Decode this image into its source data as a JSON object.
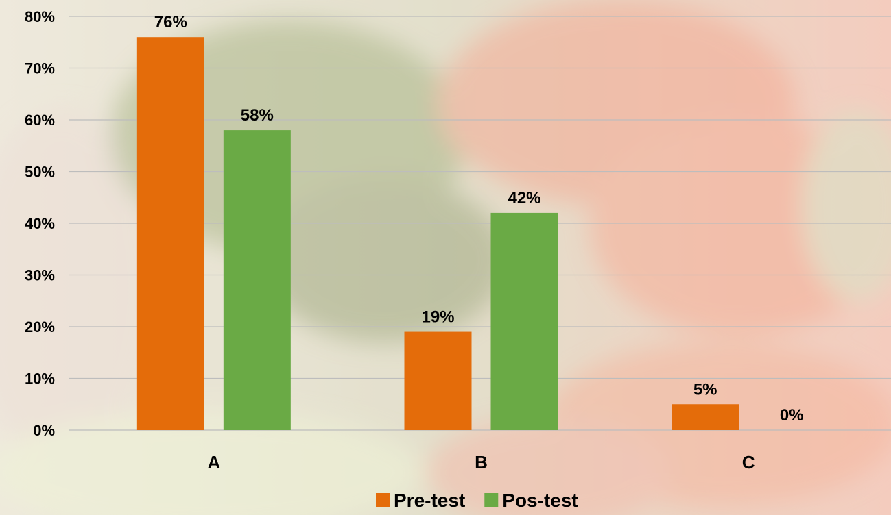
{
  "chart_data": {
    "type": "bar",
    "categories": [
      "A",
      "B",
      "C"
    ],
    "series": [
      {
        "name": "Pre-test",
        "values": [
          76,
          19,
          5
        ],
        "labels": [
          "76%",
          "19%",
          "5%"
        ]
      },
      {
        "name": "Pos-test",
        "values": [
          58,
          42,
          0
        ],
        "labels": [
          "58%",
          "42%",
          "0%"
        ]
      }
    ],
    "yticks": [
      "0%",
      "10%",
      "20%",
      "30%",
      "40%",
      "50%",
      "60%",
      "70%",
      "80%"
    ],
    "ylim": [
      0,
      80
    ],
    "grid": true,
    "legend": "bottom",
    "colors": {
      "Pre-test": "#E46C0A",
      "Pos-test": "#6AAA45"
    }
  }
}
